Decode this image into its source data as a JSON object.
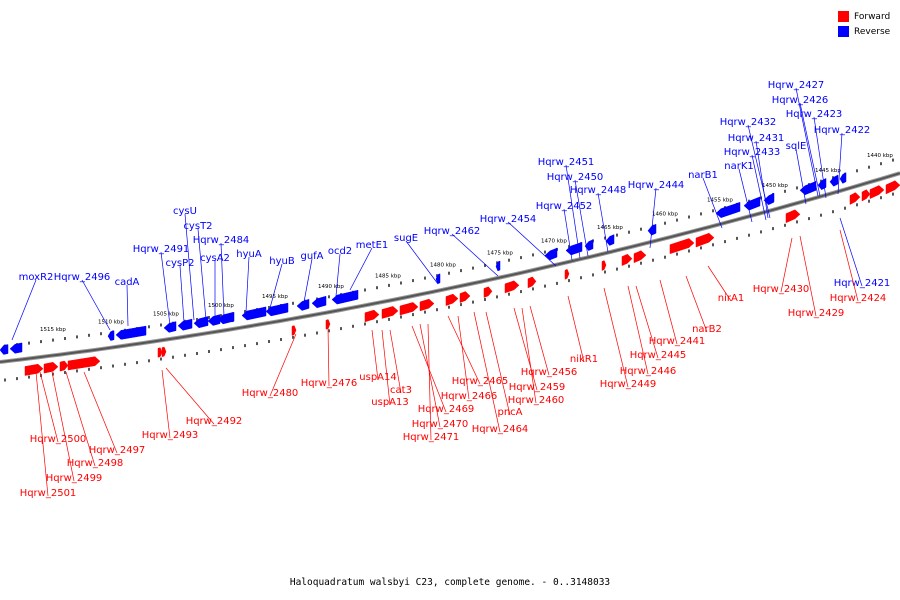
{
  "legend": {
    "items": [
      {
        "label": "Forward",
        "color": "#ff0000"
      },
      {
        "label": "Reverse",
        "color": "#0000ff"
      }
    ]
  },
  "caption": "Haloquadratum walsbyi C23, complete genome. - 0..3148033",
  "colors": {
    "forward": "#ff0000",
    "reverse": "#0000ff",
    "backbone": "#555555"
  },
  "ticks": [
    "1515 kbp",
    "1510 kbp",
    "1505 kbp",
    "1500 kbp",
    "1495 kbp",
    "1490 kbp",
    "1485 kbp",
    "1480 kbp",
    "1475 kbp",
    "1470 kbp",
    "1465 kbp",
    "1460 kbp",
    "1455 kbp",
    "1450 kbp",
    "1445 kbp",
    "1440 kbp"
  ],
  "reverse_labels": [
    "moxR2",
    "Hqrw_2496",
    "cadA",
    "Hqrw_2491",
    "cysP2",
    "cysU",
    "cysT2",
    "cysA2",
    "Hqrw_2484",
    "hyuA",
    "hyuB",
    "gufA",
    "ocd2",
    "metE1",
    "sugE",
    "Hqrw_2462",
    "Hqrw_2454",
    "Hqrw_2452",
    "Hqrw_2451",
    "Hqrw_2450",
    "Hqrw_2448",
    "Hqrw_2444",
    "narB1",
    "narK1",
    "Hqrw_2433",
    "Hqrw_2431",
    "Hqrw_2432",
    "sqlE",
    "Hqrw_2423",
    "Hqrw_2426",
    "Hqrw_2427",
    "Hqrw_2422",
    "Hqrw_2421"
  ],
  "forward_labels": [
    "Hqrw_2500",
    "Hqrw_2501",
    "Hqrw_2499",
    "Hqrw_2498",
    "Hqrw_2497",
    "Hqrw_2493",
    "Hqrw_2492",
    "Hqrw_2480",
    "Hqrw_2476",
    "uspA14",
    "uspA13",
    "cat3",
    "Hqrw_2469",
    "Hqrw_2470",
    "Hqrw_2471",
    "Hqrw_2465",
    "Hqrw_2466",
    "Hqrw_2464",
    "pncA",
    "Hqrw_2459",
    "Hqrw_2460",
    "Hqrw_2456",
    "nikR1",
    "Hqrw_2449",
    "Hqrw_2446",
    "Hqrw_2445",
    "Hqrw_2441",
    "narB2",
    "nirA1",
    "Hqrw_2430",
    "Hqrw_2429",
    "Hqrw_2424"
  ]
}
